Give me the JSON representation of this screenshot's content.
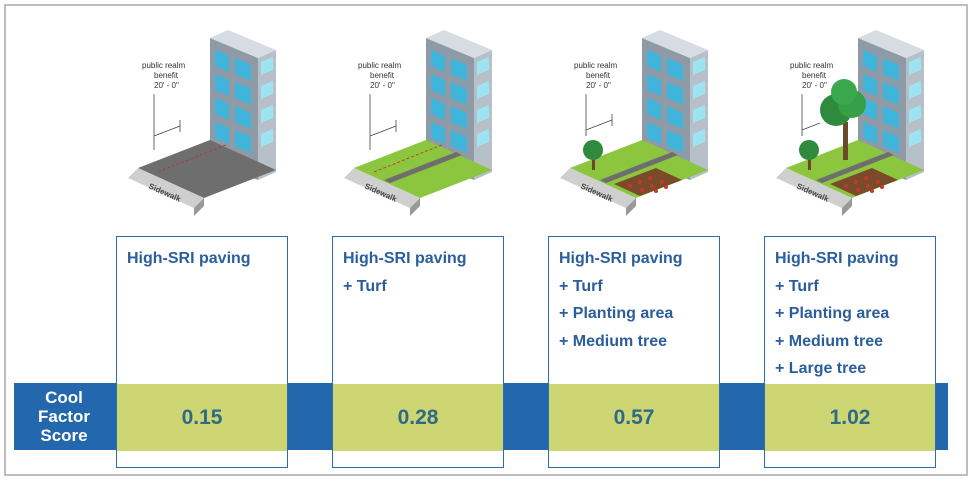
{
  "row_label": {
    "line1": "Cool",
    "line2": "Factor",
    "line3": "Score"
  },
  "panels": [
    {
      "annot": [
        "public realm",
        "benefit",
        "20' - 0\""
      ],
      "sidewalk": "Sidewalk",
      "items": [
        "High-SRI paving"
      ],
      "score": "0.15"
    },
    {
      "annot": [
        "public realm",
        "benefit",
        "20' - 0\""
      ],
      "sidewalk": "Sidewalk",
      "items": [
        "High-SRI paving",
        "+ Turf"
      ],
      "score": "0.28"
    },
    {
      "annot": [
        "public realm",
        "benefit",
        "20' - 0\""
      ],
      "sidewalk": "Sidewalk",
      "items": [
        "High-SRI paving",
        "+ Turf",
        "+ Planting area",
        "+ Medium tree"
      ],
      "score": "0.57"
    },
    {
      "annot": [
        "public realm",
        "benefit",
        "20' - 0\""
      ],
      "sidewalk": "Sidewalk",
      "items": [
        "High-SRI paving",
        "+ Turf",
        "+ Planting area",
        "+ Medium tree",
        "+ Large tree"
      ],
      "score": "1.02"
    }
  ],
  "colors": {
    "band": "#2368ad",
    "score_fill": "#cdd672",
    "text_blue": "#2a5e9c",
    "turf": "#8cc63f"
  }
}
